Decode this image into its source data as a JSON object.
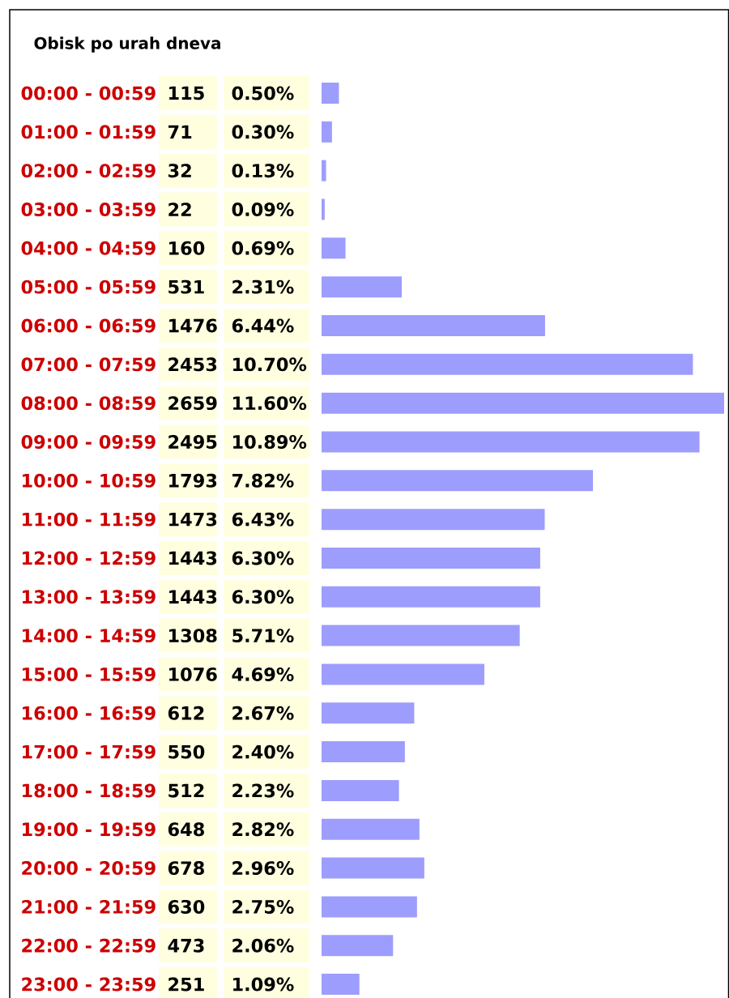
{
  "chart_data": {
    "type": "bar",
    "orientation": "horizontal",
    "title": "Obisk po urah dneva",
    "categories": [
      "00:00 - 00:59",
      "01:00 - 01:59",
      "02:00 - 02:59",
      "03:00 - 03:59",
      "04:00 - 04:59",
      "05:00 - 05:59",
      "06:00 - 06:59",
      "07:00 - 07:59",
      "08:00 - 08:59",
      "09:00 - 09:59",
      "10:00 - 10:59",
      "11:00 - 11:59",
      "12:00 - 12:59",
      "13:00 - 13:59",
      "14:00 - 14:59",
      "15:00 - 15:59",
      "16:00 - 16:59",
      "17:00 - 17:59",
      "18:00 - 18:59",
      "19:00 - 19:59",
      "20:00 - 20:59",
      "21:00 - 21:59",
      "22:00 - 22:59",
      "23:00 - 23:59"
    ],
    "values": [
      0.5,
      0.3,
      0.13,
      0.09,
      0.69,
      2.31,
      6.44,
      10.7,
      11.6,
      10.89,
      7.82,
      6.43,
      6.3,
      6.3,
      5.71,
      4.69,
      2.67,
      2.4,
      2.23,
      2.82,
      2.96,
      2.75,
      2.06,
      1.09
    ],
    "value_labels": [
      "0.50%",
      "0.30%",
      "0.13%",
      "0.09%",
      "0.69%",
      "2.31%",
      "6.44%",
      "10.70%",
      "11.60%",
      "10.89%",
      "7.82%",
      "6.43%",
      "6.30%",
      "6.30%",
      "5.71%",
      "4.69%",
      "2.67%",
      "2.40%",
      "2.23%",
      "2.82%",
      "2.96%",
      "2.75%",
      "2.06%",
      "1.09%"
    ],
    "annotations": [
      "115",
      "71",
      "32",
      "22",
      "160",
      "531",
      "1476",
      "2453",
      "2659",
      "2495",
      "1793",
      "1473",
      "1443",
      "1443",
      "1308",
      "1076",
      "612",
      "550",
      "512",
      "648",
      "678",
      "630",
      "473",
      "251"
    ],
    "color": "#9d9dfd"
  }
}
